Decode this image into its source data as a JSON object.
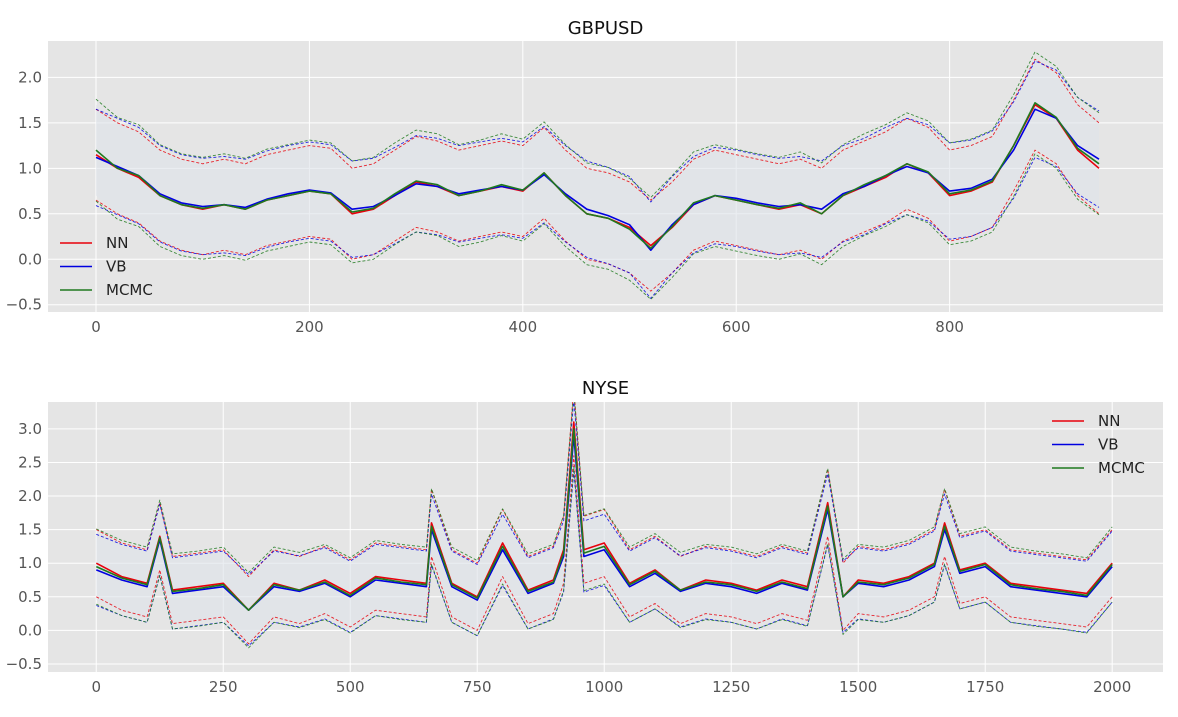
{
  "colors": {
    "NN": "#e8000b",
    "VB": "#0000e0",
    "MCMC": "#1f7a1f",
    "panel": "#e5e5e5",
    "tick": "#555555"
  },
  "chart_data": [
    {
      "type": "line",
      "title": "GBPUSD",
      "xlim": [
        -45,
        1000
      ],
      "ylim": [
        -0.58,
        2.4
      ],
      "xticks": [
        0,
        200,
        400,
        600,
        800
      ],
      "yticks": [
        -0.5,
        0.0,
        0.5,
        1.0,
        1.5,
        2.0
      ],
      "xtick_labels": [
        "0",
        "200",
        "400",
        "600",
        "800"
      ],
      "ytick_labels": [
        "−0.5",
        "0.0",
        "0.5",
        "1.0",
        "1.5",
        "2.0"
      ],
      "legend_position": "lower-left",
      "grid": true,
      "x": [
        0,
        20,
        40,
        60,
        80,
        100,
        120,
        140,
        160,
        180,
        200,
        220,
        240,
        260,
        280,
        300,
        320,
        340,
        360,
        380,
        400,
        420,
        440,
        460,
        480,
        500,
        520,
        540,
        560,
        580,
        600,
        620,
        640,
        660,
        680,
        700,
        720,
        740,
        760,
        780,
        800,
        820,
        840,
        860,
        880,
        900,
        920,
        940
      ],
      "series": [
        {
          "name": "NN",
          "color_key": "NN",
          "values": [
            1.15,
            1.0,
            0.9,
            0.7,
            0.6,
            0.55,
            0.6,
            0.55,
            0.65,
            0.7,
            0.75,
            0.72,
            0.5,
            0.55,
            0.7,
            0.85,
            0.8,
            0.7,
            0.75,
            0.8,
            0.75,
            0.95,
            0.7,
            0.5,
            0.45,
            0.35,
            0.15,
            0.35,
            0.6,
            0.7,
            0.65,
            0.6,
            0.55,
            0.6,
            0.5,
            0.7,
            0.8,
            0.9,
            1.05,
            0.95,
            0.7,
            0.75,
            0.85,
            1.25,
            1.7,
            1.55,
            1.2,
            1.0
          ]
        },
        {
          "name": "VB",
          "color_key": "VB",
          "values": [
            1.12,
            1.02,
            0.92,
            0.72,
            0.62,
            0.58,
            0.6,
            0.57,
            0.66,
            0.72,
            0.76,
            0.73,
            0.55,
            0.58,
            0.7,
            0.83,
            0.8,
            0.72,
            0.76,
            0.8,
            0.76,
            0.93,
            0.72,
            0.55,
            0.48,
            0.38,
            0.1,
            0.38,
            0.6,
            0.7,
            0.67,
            0.62,
            0.58,
            0.6,
            0.55,
            0.72,
            0.8,
            0.92,
            1.02,
            0.95,
            0.75,
            0.78,
            0.88,
            1.2,
            1.65,
            1.55,
            1.25,
            1.1
          ]
        },
        {
          "name": "MCMC",
          "color_key": "MCMC",
          "values": [
            1.2,
            1.0,
            0.92,
            0.7,
            0.6,
            0.56,
            0.6,
            0.55,
            0.65,
            0.7,
            0.75,
            0.72,
            0.52,
            0.56,
            0.72,
            0.86,
            0.82,
            0.7,
            0.75,
            0.82,
            0.76,
            0.95,
            0.7,
            0.5,
            0.45,
            0.33,
            0.12,
            0.36,
            0.62,
            0.7,
            0.65,
            0.6,
            0.56,
            0.62,
            0.5,
            0.7,
            0.82,
            0.92,
            1.05,
            0.96,
            0.72,
            0.76,
            0.86,
            1.25,
            1.72,
            1.56,
            1.22,
            1.05
          ]
        }
      ]
    },
    {
      "type": "line",
      "title": "NYSE",
      "xlim": [
        -95,
        2100
      ],
      "ylim": [
        -0.62,
        3.4
      ],
      "xticks": [
        0,
        250,
        500,
        750,
        1000,
        1250,
        1500,
        1750,
        2000
      ],
      "yticks": [
        -0.5,
        0.0,
        0.5,
        1.0,
        1.5,
        2.0,
        2.5,
        3.0
      ],
      "xtick_labels": [
        "0",
        "250",
        "500",
        "750",
        "1000",
        "1250",
        "1500",
        "1750",
        "2000"
      ],
      "ytick_labels": [
        "−0.5",
        "0.0",
        "0.5",
        "1.0",
        "1.5",
        "2.0",
        "2.5",
        "3.0"
      ],
      "legend_position": "top-right",
      "grid": true,
      "x": [
        0,
        50,
        100,
        125,
        150,
        200,
        250,
        300,
        350,
        400,
        450,
        500,
        550,
        600,
        650,
        660,
        700,
        750,
        800,
        850,
        900,
        920,
        940,
        960,
        1000,
        1050,
        1100,
        1150,
        1200,
        1250,
        1300,
        1350,
        1400,
        1440,
        1470,
        1500,
        1550,
        1600,
        1650,
        1670,
        1700,
        1750,
        1800,
        1850,
        1900,
        1950,
        2000
      ],
      "series": [
        {
          "name": "NN",
          "color_key": "NN",
          "values": [
            1.0,
            0.8,
            0.7,
            1.4,
            0.6,
            0.65,
            0.7,
            0.3,
            0.7,
            0.6,
            0.75,
            0.55,
            0.8,
            0.75,
            0.7,
            1.6,
            0.7,
            0.5,
            1.3,
            0.6,
            0.75,
            1.2,
            3.1,
            1.2,
            1.3,
            0.7,
            0.9,
            0.6,
            0.75,
            0.7,
            0.6,
            0.75,
            0.65,
            1.9,
            0.5,
            0.75,
            0.7,
            0.8,
            1.0,
            1.6,
            0.9,
            1.0,
            0.7,
            0.65,
            0.6,
            0.55,
            1.0
          ]
        },
        {
          "name": "VB",
          "color_key": "VB",
          "values": [
            0.9,
            0.75,
            0.65,
            1.35,
            0.55,
            0.6,
            0.65,
            0.3,
            0.65,
            0.58,
            0.7,
            0.5,
            0.75,
            0.7,
            0.65,
            1.5,
            0.65,
            0.45,
            1.2,
            0.55,
            0.7,
            1.1,
            2.9,
            1.1,
            1.2,
            0.65,
            0.85,
            0.58,
            0.7,
            0.65,
            0.55,
            0.7,
            0.6,
            1.8,
            0.5,
            0.7,
            0.65,
            0.75,
            0.95,
            1.5,
            0.85,
            0.95,
            0.65,
            0.6,
            0.55,
            0.5,
            0.95
          ]
        },
        {
          "name": "MCMC",
          "color_key": "MCMC",
          "values": [
            0.95,
            0.78,
            0.68,
            1.38,
            0.58,
            0.62,
            0.68,
            0.3,
            0.68,
            0.6,
            0.72,
            0.52,
            0.78,
            0.72,
            0.68,
            1.55,
            0.68,
            0.48,
            1.25,
            0.58,
            0.72,
            1.15,
            3.0,
            1.15,
            1.25,
            0.68,
            0.88,
            0.6,
            0.72,
            0.68,
            0.58,
            0.72,
            0.62,
            1.85,
            0.5,
            0.72,
            0.68,
            0.78,
            0.98,
            1.55,
            0.88,
            0.98,
            0.68,
            0.62,
            0.58,
            0.52,
            0.98
          ]
        }
      ]
    }
  ]
}
